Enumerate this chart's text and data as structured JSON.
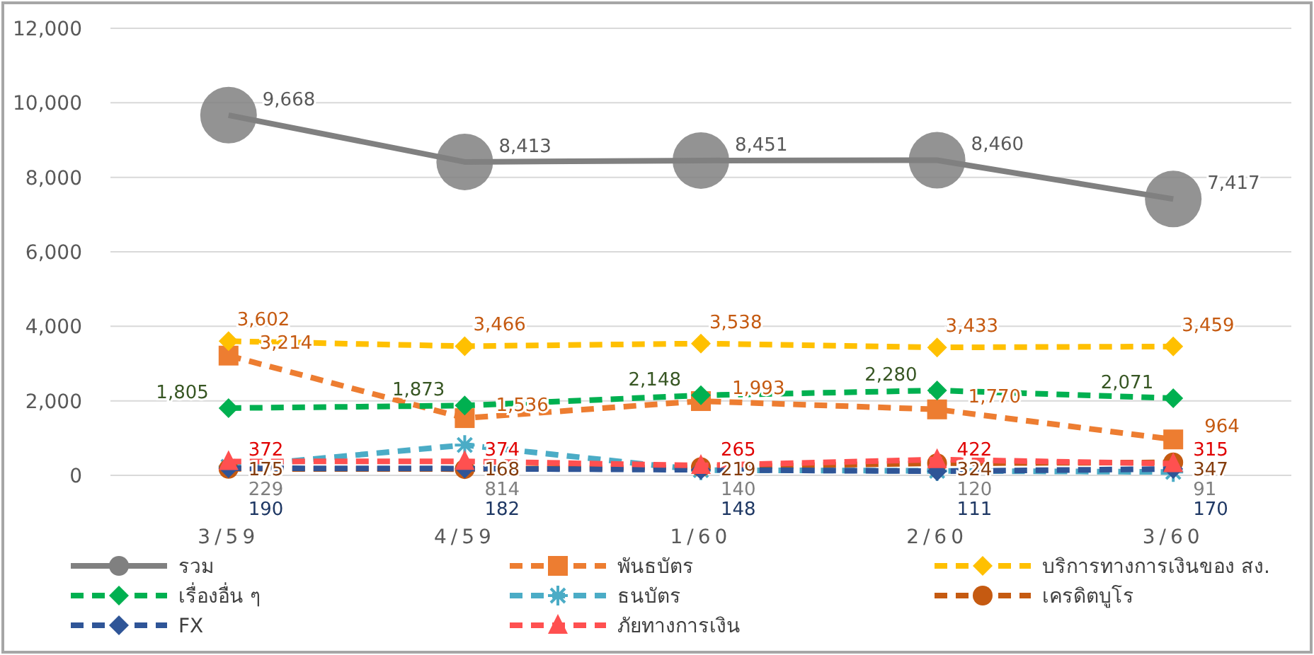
{
  "chart_data": {
    "type": "line",
    "categories": [
      "3/59",
      "4/59",
      "1/60",
      "2/60",
      "3/60"
    ],
    "ylim": [
      0,
      12000
    ],
    "yticks": [
      0,
      {
        "value": 2000,
        "label": "2,000"
      },
      {
        "value": 4000,
        "label": "4,000"
      },
      {
        "value": 6000,
        "label": "6,000"
      },
      {
        "value": 8000,
        "label": "8,000"
      },
      {
        "value": 10000,
        "label": "10,000"
      },
      {
        "value": 12000,
        "label": "12,000"
      }
    ],
    "grid": "y",
    "legend": "bottom",
    "series": [
      {
        "name": "รวม",
        "color": "#808080",
        "marker": "circle",
        "line_style": "solid",
        "values": [
          9668,
          8413,
          8451,
          8460,
          7417
        ],
        "value_labels": [
          "9,668",
          "8,413",
          "8,451",
          "8,460",
          "7,417"
        ]
      },
      {
        "name": "พันธบัตร",
        "color": "#ed7d31",
        "marker": "square",
        "line_style": "dashed",
        "values": [
          3214,
          1536,
          1993,
          1770,
          964
        ],
        "value_labels": [
          "3,214",
          "1,536",
          "1,993",
          "1,770",
          "964"
        ]
      },
      {
        "name": "บริการทางการเงินของ สง.",
        "color": "#ffc000",
        "marker": "diamond",
        "line_style": "dashed",
        "values": [
          3602,
          3466,
          3538,
          3433,
          3459
        ],
        "value_labels": [
          "3,602",
          "3,466",
          "3,538",
          "3,433",
          "3,459"
        ]
      },
      {
        "name": "เรื่องอื่น ๆ",
        "color": "#00b050",
        "marker": "diamond",
        "line_style": "dashed",
        "values": [
          1805,
          1873,
          2148,
          2280,
          2071
        ],
        "value_labels": [
          "1,805",
          "1,873",
          "2,148",
          "2,280",
          "2,071"
        ]
      },
      {
        "name": "ธนบัตร",
        "color": "#4bacc6",
        "marker": "cross",
        "line_style": "dashed",
        "values": [
          229,
          814,
          140,
          120,
          91
        ],
        "value_labels": [
          "229",
          "814",
          "140",
          "120",
          "91"
        ]
      },
      {
        "name": "เครดิตบูโร",
        "color": "#c55a11",
        "marker": "circle",
        "line_style": "dashed",
        "values": [
          175,
          168,
          219,
          324,
          347
        ],
        "value_labels": [
          "175",
          "168",
          "219",
          "324",
          "347"
        ]
      },
      {
        "name": "FX",
        "color": "#2f5597",
        "marker": "diamond",
        "line_style": "dashed",
        "values": [
          190,
          182,
          148,
          111,
          170
        ],
        "value_labels": [
          "190",
          "182",
          "148",
          "111",
          "170"
        ]
      },
      {
        "name": "ภัยทางการเงิน",
        "color": "#ff5050",
        "marker": "triangle",
        "line_style": "dashed",
        "values": [
          372,
          374,
          265,
          422,
          315
        ],
        "value_labels": [
          "372",
          "374",
          "265",
          "422",
          "315"
        ]
      }
    ]
  }
}
